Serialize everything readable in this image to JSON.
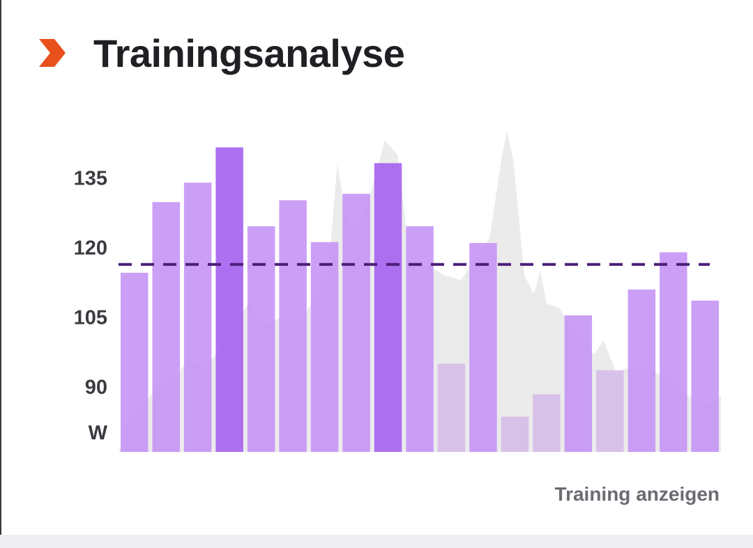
{
  "header": {
    "title": "Trainingsanalyse",
    "icon": "chevron-right-icon",
    "icon_color": "#e8501c"
  },
  "action": {
    "label": "Training anzeigen"
  },
  "colors": {
    "bar_light": "#d6bde9",
    "bar_medium": "#c595f5",
    "bar_dark": "#a968ef",
    "area": "#ebebeb",
    "reference_line": "#4b1d78"
  },
  "chart_data": {
    "type": "bar",
    "unit_label": "W",
    "yticks": [
      90,
      105,
      120,
      135
    ],
    "ylim": [
      76,
      146
    ],
    "reference_line": {
      "value": 116.4,
      "style": "dashed"
    },
    "bars": [
      {
        "value": 114.6,
        "intensity": "medium"
      },
      {
        "value": 129.8,
        "intensity": "medium"
      },
      {
        "value": 134.0,
        "intensity": "medium"
      },
      {
        "value": 141.6,
        "intensity": "dark"
      },
      {
        "value": 124.6,
        "intensity": "medium"
      },
      {
        "value": 130.2,
        "intensity": "medium"
      },
      {
        "value": 121.2,
        "intensity": "medium"
      },
      {
        "value": 131.6,
        "intensity": "medium"
      },
      {
        "value": 138.2,
        "intensity": "dark"
      },
      {
        "value": 124.6,
        "intensity": "medium"
      },
      {
        "value": 95.0,
        "intensity": "light"
      },
      {
        "value": 121.0,
        "intensity": "medium"
      },
      {
        "value": 83.6,
        "intensity": "light"
      },
      {
        "value": 88.4,
        "intensity": "light"
      },
      {
        "value": 105.4,
        "intensity": "medium"
      },
      {
        "value": 93.6,
        "intensity": "light"
      },
      {
        "value": 111.0,
        "intensity": "medium"
      },
      {
        "value": 119.0,
        "intensity": "medium"
      },
      {
        "value": 108.6,
        "intensity": "medium"
      }
    ],
    "background_area": [
      {
        "x": 0,
        "y": 76
      },
      {
        "x": 0.3,
        "y": 82
      },
      {
        "x": 1.0,
        "y": 88
      },
      {
        "x": 1.8,
        "y": 92
      },
      {
        "x": 2.2,
        "y": 96
      },
      {
        "x": 2.7,
        "y": 94
      },
      {
        "x": 3.2,
        "y": 98
      },
      {
        "x": 3.7,
        "y": 104
      },
      {
        "x": 4.1,
        "y": 108
      },
      {
        "x": 4.6,
        "y": 103
      },
      {
        "x": 5.1,
        "y": 105
      },
      {
        "x": 5.7,
        "y": 104
      },
      {
        "x": 6.2,
        "y": 109
      },
      {
        "x": 6.6,
        "y": 113
      },
      {
        "x": 6.9,
        "y": 138
      },
      {
        "x": 7.2,
        "y": 126
      },
      {
        "x": 7.5,
        "y": 123
      },
      {
        "x": 8.0,
        "y": 133
      },
      {
        "x": 8.4,
        "y": 143
      },
      {
        "x": 8.8,
        "y": 140
      },
      {
        "x": 9.2,
        "y": 117
      },
      {
        "x": 9.5,
        "y": 113
      },
      {
        "x": 9.8,
        "y": 116
      },
      {
        "x": 10.3,
        "y": 114
      },
      {
        "x": 10.8,
        "y": 113
      },
      {
        "x": 11.3,
        "y": 118
      },
      {
        "x": 11.7,
        "y": 122
      },
      {
        "x": 12.1,
        "y": 140
      },
      {
        "x": 12.25,
        "y": 145
      },
      {
        "x": 12.45,
        "y": 139
      },
      {
        "x": 12.8,
        "y": 114
      },
      {
        "x": 13.1,
        "y": 110
      },
      {
        "x": 13.3,
        "y": 115
      },
      {
        "x": 13.5,
        "y": 108
      },
      {
        "x": 13.9,
        "y": 107
      },
      {
        "x": 14.4,
        "y": 102
      },
      {
        "x": 15.0,
        "y": 97
      },
      {
        "x": 15.3,
        "y": 100
      },
      {
        "x": 15.7,
        "y": 93
      },
      {
        "x": 16.0,
        "y": 94
      },
      {
        "x": 16.6,
        "y": 94
      },
      {
        "x": 17.3,
        "y": 92
      },
      {
        "x": 18.0,
        "y": 88
      },
      {
        "x": 18.5,
        "y": 86
      },
      {
        "x": 19.0,
        "y": 88
      },
      {
        "x": 19.0,
        "y": 76
      }
    ]
  }
}
